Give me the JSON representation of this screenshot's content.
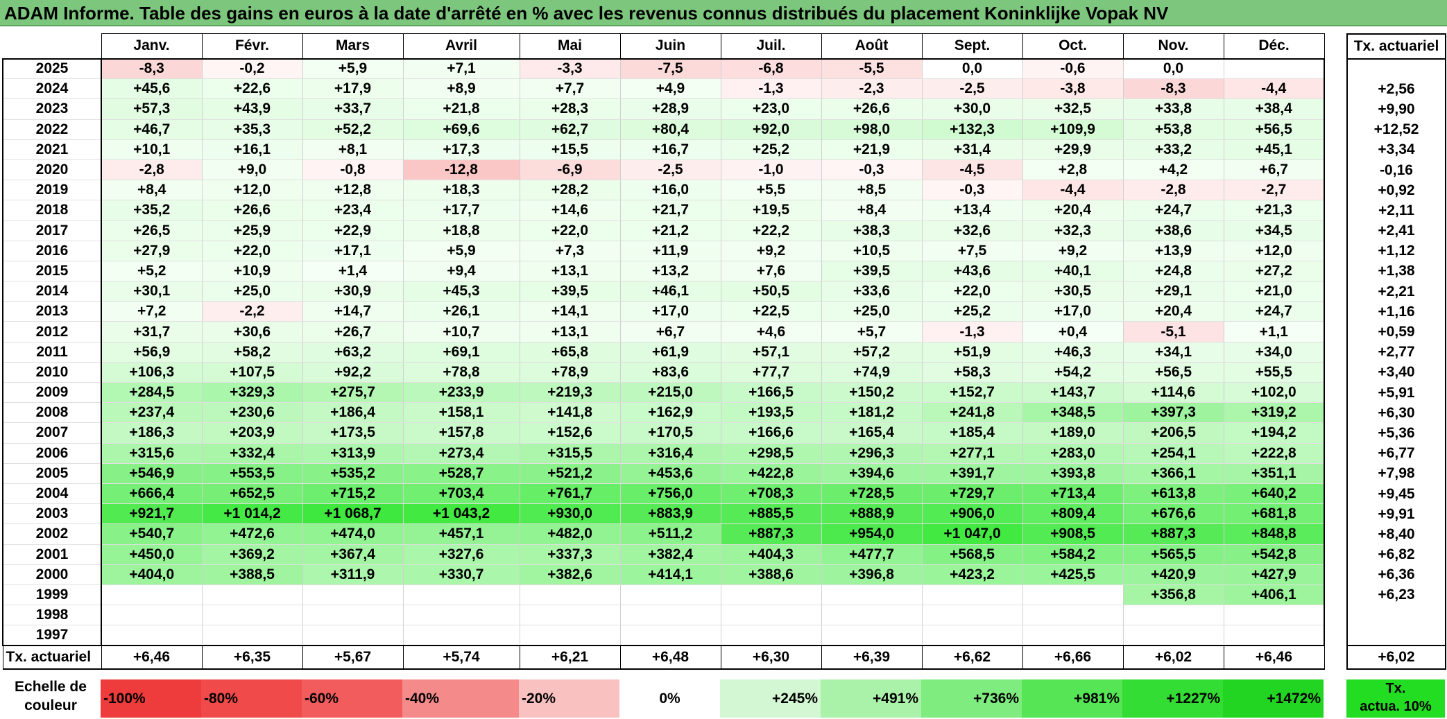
{
  "title": "ADAM Informe. Table des gains en euros à la date d'arrêté en % avec les revenus connus distribués du placement Koninklijke Vopak NV",
  "months": [
    "Janv.",
    "Févr.",
    "Mars",
    "Avril",
    "Mai",
    "Juin",
    "Juil.",
    "Août",
    "Sept.",
    "Oct.",
    "Nov.",
    "Déc."
  ],
  "side_header": "Tx. actuariel",
  "rows": [
    {
      "year": "2025",
      "values": [
        "-8,3",
        "-0,2",
        "+5,9",
        "+7,1",
        "-3,3",
        "-7,5",
        "-6,8",
        "-5,5",
        "0,0",
        "-0,6",
        "0,0",
        ""
      ],
      "rate": ""
    },
    {
      "year": "2024",
      "values": [
        "+45,6",
        "+22,6",
        "+17,9",
        "+8,9",
        "+7,7",
        "+4,9",
        "-1,3",
        "-2,3",
        "-2,5",
        "-3,8",
        "-8,3",
        "-4,4"
      ],
      "rate": "+2,56"
    },
    {
      "year": "2023",
      "values": [
        "+57,3",
        "+43,9",
        "+33,7",
        "+21,8",
        "+28,3",
        "+28,9",
        "+23,0",
        "+26,6",
        "+30,0",
        "+32,5",
        "+33,8",
        "+38,4"
      ],
      "rate": "+9,90"
    },
    {
      "year": "2022",
      "values": [
        "+46,7",
        "+35,3",
        "+52,2",
        "+69,6",
        "+62,7",
        "+80,4",
        "+92,0",
        "+98,0",
        "+132,3",
        "+109,9",
        "+53,8",
        "+56,5"
      ],
      "rate": "+12,52"
    },
    {
      "year": "2021",
      "values": [
        "+10,1",
        "+16,1",
        "+8,1",
        "+17,3",
        "+15,5",
        "+16,7",
        "+25,2",
        "+21,9",
        "+31,4",
        "+29,9",
        "+33,2",
        "+45,1"
      ],
      "rate": "+3,34"
    },
    {
      "year": "2020",
      "values": [
        "-2,8",
        "+9,0",
        "-0,8",
        "-12,8",
        "-6,9",
        "-2,5",
        "-1,0",
        "-0,3",
        "-4,5",
        "+2,8",
        "+4,2",
        "+6,7"
      ],
      "rate": "-0,16"
    },
    {
      "year": "2019",
      "values": [
        "+8,4",
        "+12,0",
        "+12,8",
        "+18,3",
        "+28,2",
        "+16,0",
        "+5,5",
        "+8,5",
        "-0,3",
        "-4,4",
        "-2,8",
        "-2,7"
      ],
      "rate": "+0,92"
    },
    {
      "year": "2018",
      "values": [
        "+35,2",
        "+26,6",
        "+23,4",
        "+17,7",
        "+14,6",
        "+21,7",
        "+19,5",
        "+8,4",
        "+13,4",
        "+20,4",
        "+24,7",
        "+21,3"
      ],
      "rate": "+2,11"
    },
    {
      "year": "2017",
      "values": [
        "+26,5",
        "+25,9",
        "+22,9",
        "+18,8",
        "+22,0",
        "+21,2",
        "+22,2",
        "+38,3",
        "+32,6",
        "+32,3",
        "+38,6",
        "+34,5"
      ],
      "rate": "+2,41"
    },
    {
      "year": "2016",
      "values": [
        "+27,9",
        "+22,0",
        "+17,1",
        "+5,9",
        "+7,3",
        "+11,9",
        "+9,2",
        "+10,5",
        "+7,5",
        "+9,2",
        "+13,9",
        "+12,0"
      ],
      "rate": "+1,12"
    },
    {
      "year": "2015",
      "values": [
        "+5,2",
        "+10,9",
        "+1,4",
        "+9,4",
        "+13,1",
        "+13,2",
        "+7,6",
        "+39,5",
        "+43,6",
        "+40,1",
        "+24,8",
        "+27,2"
      ],
      "rate": "+1,38"
    },
    {
      "year": "2014",
      "values": [
        "+30,1",
        "+25,0",
        "+30,9",
        "+45,3",
        "+39,5",
        "+46,1",
        "+50,5",
        "+33,6",
        "+22,0",
        "+30,5",
        "+29,1",
        "+21,0"
      ],
      "rate": "+2,21"
    },
    {
      "year": "2013",
      "values": [
        "+7,2",
        "-2,2",
        "+14,7",
        "+26,1",
        "+14,1",
        "+17,0",
        "+22,5",
        "+25,0",
        "+25,2",
        "+17,0",
        "+20,4",
        "+24,7"
      ],
      "rate": "+1,16"
    },
    {
      "year": "2012",
      "values": [
        "+31,7",
        "+30,6",
        "+26,7",
        "+10,7",
        "+13,1",
        "+6,7",
        "+4,6",
        "+5,7",
        "-1,3",
        "+0,4",
        "-5,1",
        "+1,1"
      ],
      "rate": "+0,59"
    },
    {
      "year": "2011",
      "values": [
        "+56,9",
        "+58,2",
        "+63,2",
        "+69,1",
        "+65,8",
        "+61,9",
        "+57,1",
        "+57,2",
        "+51,9",
        "+46,3",
        "+34,1",
        "+34,0"
      ],
      "rate": "+2,77"
    },
    {
      "year": "2010",
      "values": [
        "+106,3",
        "+107,5",
        "+92,2",
        "+78,8",
        "+78,9",
        "+83,6",
        "+77,7",
        "+74,9",
        "+58,3",
        "+54,2",
        "+56,5",
        "+55,5"
      ],
      "rate": "+3,40"
    },
    {
      "year": "2009",
      "values": [
        "+284,5",
        "+329,3",
        "+275,7",
        "+233,9",
        "+219,3",
        "+215,0",
        "+166,5",
        "+150,2",
        "+152,7",
        "+143,7",
        "+114,6",
        "+102,0"
      ],
      "rate": "+5,91"
    },
    {
      "year": "2008",
      "values": [
        "+237,4",
        "+230,6",
        "+186,4",
        "+158,1",
        "+141,8",
        "+162,9",
        "+193,5",
        "+181,2",
        "+241,8",
        "+348,5",
        "+397,3",
        "+319,2"
      ],
      "rate": "+6,30"
    },
    {
      "year": "2007",
      "values": [
        "+186,3",
        "+203,9",
        "+173,5",
        "+157,8",
        "+152,6",
        "+170,5",
        "+166,6",
        "+165,4",
        "+185,4",
        "+189,0",
        "+206,5",
        "+194,2"
      ],
      "rate": "+5,36"
    },
    {
      "year": "2006",
      "values": [
        "+315,6",
        "+332,4",
        "+313,9",
        "+273,4",
        "+315,5",
        "+316,4",
        "+298,5",
        "+296,3",
        "+277,1",
        "+283,0",
        "+254,1",
        "+222,8"
      ],
      "rate": "+6,77"
    },
    {
      "year": "2005",
      "values": [
        "+546,9",
        "+553,5",
        "+535,2",
        "+528,7",
        "+521,2",
        "+453,6",
        "+422,8",
        "+394,6",
        "+391,7",
        "+393,8",
        "+366,1",
        "+351,1"
      ],
      "rate": "+7,98"
    },
    {
      "year": "2004",
      "values": [
        "+666,4",
        "+652,5",
        "+715,2",
        "+703,4",
        "+761,7",
        "+756,0",
        "+708,3",
        "+728,5",
        "+729,7",
        "+713,4",
        "+613,8",
        "+640,2"
      ],
      "rate": "+9,45"
    },
    {
      "year": "2003",
      "values": [
        "+921,7",
        "+1 014,2",
        "+1 068,7",
        "+1 043,2",
        "+930,0",
        "+883,9",
        "+885,5",
        "+888,9",
        "+906,0",
        "+809,4",
        "+676,6",
        "+681,8"
      ],
      "rate": "+9,91"
    },
    {
      "year": "2002",
      "values": [
        "+540,7",
        "+472,6",
        "+474,0",
        "+457,1",
        "+482,0",
        "+511,2",
        "+887,3",
        "+954,0",
        "+1 047,0",
        "+908,5",
        "+887,3",
        "+848,8"
      ],
      "rate": "+8,40"
    },
    {
      "year": "2001",
      "values": [
        "+450,0",
        "+369,2",
        "+367,4",
        "+327,6",
        "+337,3",
        "+382,4",
        "+404,3",
        "+477,7",
        "+568,5",
        "+584,2",
        "+565,5",
        "+542,8"
      ],
      "rate": "+6,82"
    },
    {
      "year": "2000",
      "values": [
        "+404,0",
        "+388,5",
        "+311,9",
        "+330,7",
        "+382,6",
        "+414,1",
        "+388,6",
        "+396,8",
        "+423,2",
        "+425,5",
        "+420,9",
        "+427,9"
      ],
      "rate": "+6,36"
    },
    {
      "year": "1999",
      "values": [
        "",
        "",
        "",
        "",
        "",
        "",
        "",
        "",
        "",
        "",
        "+356,8",
        "+406,1"
      ],
      "rate": "+6,23"
    },
    {
      "year": "1998",
      "values": [
        "",
        "",
        "",
        "",
        "",
        "",
        "",
        "",
        "",
        "",
        "",
        ""
      ],
      "rate": ""
    },
    {
      "year": "1997",
      "values": [
        "",
        "",
        "",
        "",
        "",
        "",
        "",
        "",
        "",
        "",
        "",
        ""
      ],
      "rate": ""
    }
  ],
  "total_row": {
    "label": "Tx. actuariel",
    "values": [
      "+6,46",
      "+6,35",
      "+5,67",
      "+5,74",
      "+6,21",
      "+6,48",
      "+6,30",
      "+6,39",
      "+6,62",
      "+6,66",
      "+6,02",
      "+6,46"
    ],
    "rate": "+6,02"
  },
  "scale": {
    "label_line1": "Echelle de",
    "label_line2": "couleur",
    "cells": [
      {
        "text": "-100%",
        "color": "#ee3b3b",
        "align": "left"
      },
      {
        "text": "-80%",
        "color": "#f14a4a",
        "align": "left"
      },
      {
        "text": "-60%",
        "color": "#f25c5c",
        "align": "left"
      },
      {
        "text": "-40%",
        "color": "#f58a8a",
        "align": "left"
      },
      {
        "text": "-20%",
        "color": "#fac1c1",
        "align": "left"
      },
      {
        "text": "0%",
        "color": "#ffffff",
        "align": "center"
      },
      {
        "text": "+245%",
        "color": "#d3f7d3",
        "align": "right"
      },
      {
        "text": "+491%",
        "color": "#aaf2aa",
        "align": "right"
      },
      {
        "text": "+736%",
        "color": "#7fec7f",
        "align": "right"
      },
      {
        "text": "+981%",
        "color": "#55e555",
        "align": "right"
      },
      {
        "text": "+1227%",
        "color": "#33dd33",
        "align": "right"
      },
      {
        "text": "+1472%",
        "color": "#22d522",
        "align": "right"
      }
    ],
    "target_line1": "Tx.",
    "target_line2": "actua. 10%"
  }
}
